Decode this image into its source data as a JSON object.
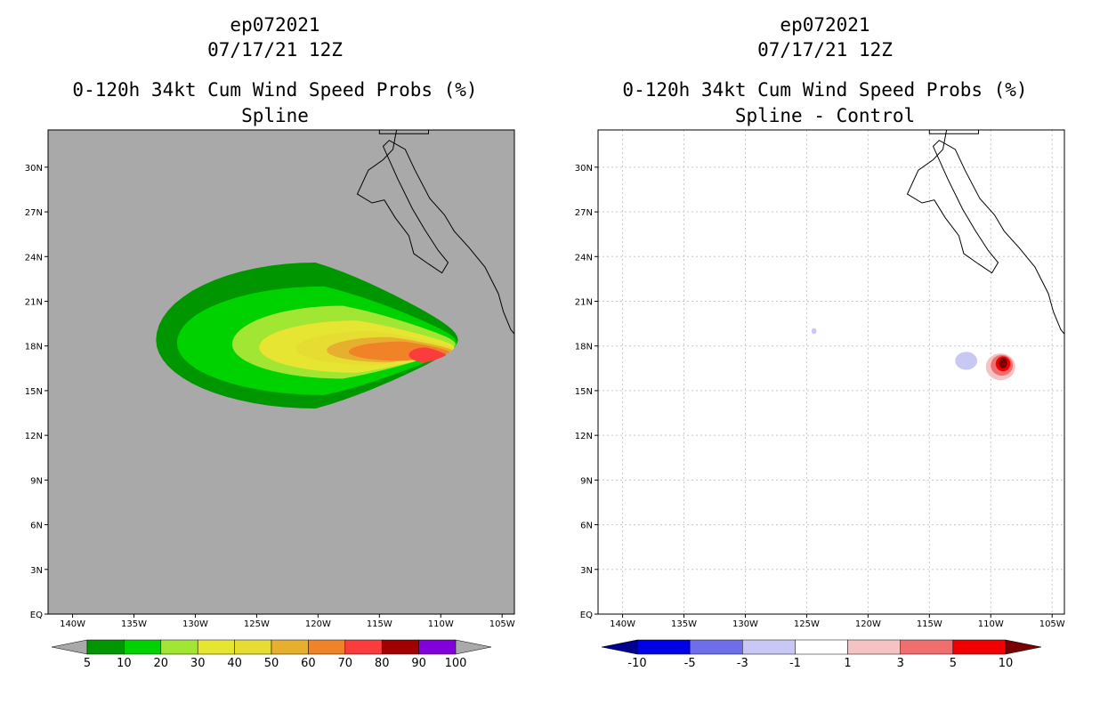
{
  "chart_data": [
    {
      "type": "heatmap",
      "name": "spline",
      "title_lines": [
        "ep072021",
        "07/17/21 12Z",
        "0-120h 34kt Cum Wind Speed Probs (%)",
        "Spline"
      ],
      "units": "%",
      "xaxis": {
        "range": [
          -142,
          -104
        ],
        "ticks": [
          -140,
          -135,
          -130,
          -125,
          -120,
          -115,
          -110,
          -105
        ],
        "tick_labels": [
          "140W",
          "135W",
          "130W",
          "125W",
          "120W",
          "115W",
          "110W",
          "105W"
        ]
      },
      "yaxis": {
        "range": [
          0,
          32.5
        ],
        "ticks": [
          0,
          3,
          6,
          9,
          12,
          15,
          18,
          21,
          24,
          27,
          30
        ],
        "tick_labels": [
          "EQ",
          "3N",
          "6N",
          "9N",
          "12N",
          "15N",
          "18N",
          "21N",
          "24N",
          "27N",
          "30N"
        ]
      },
      "background_color": "#a9a9a9",
      "grid": false,
      "contour_levels": [
        5,
        10,
        20,
        30,
        40,
        50,
        60,
        70,
        80
      ],
      "contour_regions": [
        {
          "level": 5,
          "center_lon": -120.2,
          "center_lat": 18.4,
          "west_lon": -133.2,
          "east_lon": -108.6,
          "north_halfwidth": 5.2,
          "south_halfwidth": 4.6
        },
        {
          "level": 10,
          "center_lon": -119.5,
          "center_lat": 18.2,
          "west_lon": -131.5,
          "east_lon": -108.7,
          "north_halfwidth": 3.8,
          "south_halfwidth": 3.5
        },
        {
          "level": 20,
          "center_lon": -118.0,
          "center_lat": 18.1,
          "west_lon": -127.0,
          "east_lon": -108.8,
          "north_halfwidth": 2.6,
          "south_halfwidth": 2.3
        },
        {
          "level": 30,
          "center_lon": -116.8,
          "center_lat": 17.9,
          "west_lon": -124.8,
          "east_lon": -108.9,
          "north_halfwidth": 1.8,
          "south_halfwidth": 1.7
        },
        {
          "level": 40,
          "center_lon": -115.5,
          "center_lat": 17.8,
          "west_lon": -121.8,
          "east_lon": -109.0,
          "north_halfwidth": 1.2,
          "south_halfwidth": 1.1
        },
        {
          "level": 50,
          "center_lon": -114.2,
          "center_lat": 17.7,
          "west_lon": -119.3,
          "east_lon": -109.1,
          "north_halfwidth": 0.9,
          "south_halfwidth": 0.8
        },
        {
          "level": 60,
          "center_lon": -113.0,
          "center_lat": 17.6,
          "west_lon": -117.5,
          "east_lon": -109.3,
          "north_halfwidth": 0.7,
          "south_halfwidth": 0.6
        },
        {
          "level": 70,
          "center_lon": -111.2,
          "center_lat": 17.4,
          "west_lon": -112.6,
          "east_lon": -109.6,
          "north_halfwidth": 0.5,
          "south_halfwidth": 0.5
        }
      ],
      "colorbar": {
        "labels": [
          "5",
          "10",
          "20",
          "30",
          "40",
          "50",
          "60",
          "70",
          "80",
          "90",
          "100"
        ],
        "colors": [
          "#009600",
          "#00d200",
          "#a0e632",
          "#e6e632",
          "#e6dc32",
          "#e6af2d",
          "#f08228",
          "#fa3c3c",
          "#a00000",
          "#8200dc"
        ],
        "below_color": "#a9a9a9",
        "above_color": "#a9a9a9"
      }
    },
    {
      "type": "heatmap",
      "name": "spline-minus-control",
      "title_lines": [
        "ep072021",
        "07/17/21 12Z",
        "0-120h 34kt Cum Wind Speed Probs (%)",
        "Spline - Control"
      ],
      "units": "%",
      "xaxis": {
        "range": [
          -142,
          -104
        ],
        "ticks": [
          -140,
          -135,
          -130,
          -125,
          -120,
          -115,
          -110,
          -105
        ],
        "tick_labels": [
          "140W",
          "135W",
          "130W",
          "125W",
          "120W",
          "115W",
          "110W",
          "105W"
        ]
      },
      "yaxis": {
        "range": [
          0,
          32.5
        ],
        "ticks": [
          0,
          3,
          6,
          9,
          12,
          15,
          18,
          21,
          24,
          27,
          30
        ],
        "tick_labels": [
          "EQ",
          "3N",
          "6N",
          "9N",
          "12N",
          "15N",
          "18N",
          "21N",
          "24N",
          "27N",
          "30N"
        ]
      },
      "background_color": "#ffffff",
      "grid": true,
      "features": [
        {
          "level": -3,
          "lon": -112.0,
          "lat": 17.0,
          "rlon": 0.9,
          "rlat": 0.6
        },
        {
          "level": -3,
          "lon": -124.4,
          "lat": 19.0,
          "rlon": 0.2,
          "rlat": 0.2
        },
        {
          "level": 1,
          "lon": -109.2,
          "lat": 16.6,
          "rlon": 1.2,
          "rlat": 0.9
        },
        {
          "level": 3,
          "lon": -109.1,
          "lat": 16.7,
          "rlon": 0.9,
          "rlat": 0.7
        },
        {
          "level": 5,
          "lon": -109.0,
          "lat": 16.8,
          "rlon": 0.6,
          "rlat": 0.5
        },
        {
          "level": 10,
          "lon": -109.0,
          "lat": 16.85,
          "rlon": 0.35,
          "rlat": 0.35
        }
      ],
      "colorbar": {
        "labels": [
          "-10",
          "-5",
          "-3",
          "-1",
          "1",
          "3",
          "5",
          "10"
        ],
        "colors": [
          "#0000e6",
          "#6e6eeb",
          "#c8c8f5",
          "#ffffff",
          "#f5c3c3",
          "#f06e6e",
          "#f00000"
        ],
        "below_color": "#00008c",
        "above_color": "#780000"
      }
    }
  ]
}
